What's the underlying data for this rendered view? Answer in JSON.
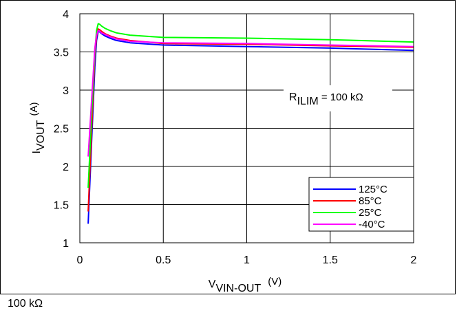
{
  "caption": "100 kΩ",
  "chart_data": {
    "type": "line",
    "xlabel": {
      "main": "V",
      "sub": "VIN-OUT",
      "unit": "(V)"
    },
    "ylabel": {
      "main": "I",
      "sub": "VOUT",
      "unit": "(A)"
    },
    "xlim": [
      0,
      2
    ],
    "ylim": [
      1,
      4
    ],
    "x_ticks": [
      0,
      0.5,
      1,
      1.5,
      2
    ],
    "x_tick_labels": [
      "0",
      "0.5",
      "1",
      "1.5",
      "2"
    ],
    "y_ticks": [
      1,
      1.5,
      2,
      2.5,
      3,
      3.5,
      4
    ],
    "y_tick_labels": [
      "1",
      "1.5",
      "2",
      "2.5",
      "3",
      "3.5",
      "4"
    ],
    "grid": true,
    "legend_position": "bottom-right",
    "annotation": {
      "main": "R",
      "sub": "ILIM",
      "rest": " = 100 kΩ"
    },
    "series": [
      {
        "name": "125°C",
        "color": "#0000ff",
        "x": [
          0.05,
          0.07,
          0.09,
          0.1,
          0.11,
          0.12,
          0.13,
          0.15,
          0.18,
          0.22,
          0.3,
          0.5,
          1.0,
          1.5,
          2.0
        ],
        "y": [
          1.25,
          2.3,
          3.3,
          3.65,
          3.77,
          3.76,
          3.74,
          3.71,
          3.68,
          3.65,
          3.62,
          3.59,
          3.57,
          3.55,
          3.52
        ]
      },
      {
        "name": "85°C",
        "color": "#ff0000",
        "x": [
          0.05,
          0.07,
          0.09,
          0.1,
          0.11,
          0.12,
          0.13,
          0.15,
          0.18,
          0.22,
          0.3,
          0.5,
          1.0,
          1.5,
          2.0
        ],
        "y": [
          1.41,
          2.45,
          3.45,
          3.7,
          3.8,
          3.79,
          3.77,
          3.74,
          3.71,
          3.68,
          3.65,
          3.61,
          3.6,
          3.58,
          3.56
        ]
      },
      {
        "name": "25°C",
        "color": "#00ff00",
        "x": [
          0.05,
          0.07,
          0.09,
          0.1,
          0.11,
          0.12,
          0.13,
          0.15,
          0.18,
          0.22,
          0.3,
          0.5,
          1.0,
          1.5,
          2.0
        ],
        "y": [
          1.72,
          2.65,
          3.5,
          3.78,
          3.87,
          3.86,
          3.84,
          3.81,
          3.78,
          3.75,
          3.72,
          3.69,
          3.68,
          3.66,
          3.63
        ]
      },
      {
        "name": "-40°C",
        "color": "#ff00ff",
        "x": [
          0.05,
          0.07,
          0.09,
          0.1,
          0.11,
          0.12,
          0.13,
          0.15,
          0.18,
          0.22,
          0.3,
          0.5,
          1.0,
          1.5,
          2.0
        ],
        "y": [
          2.13,
          2.85,
          3.55,
          3.72,
          3.78,
          3.77,
          3.75,
          3.73,
          3.7,
          3.67,
          3.64,
          3.62,
          3.61,
          3.59,
          3.57
        ]
      }
    ]
  }
}
